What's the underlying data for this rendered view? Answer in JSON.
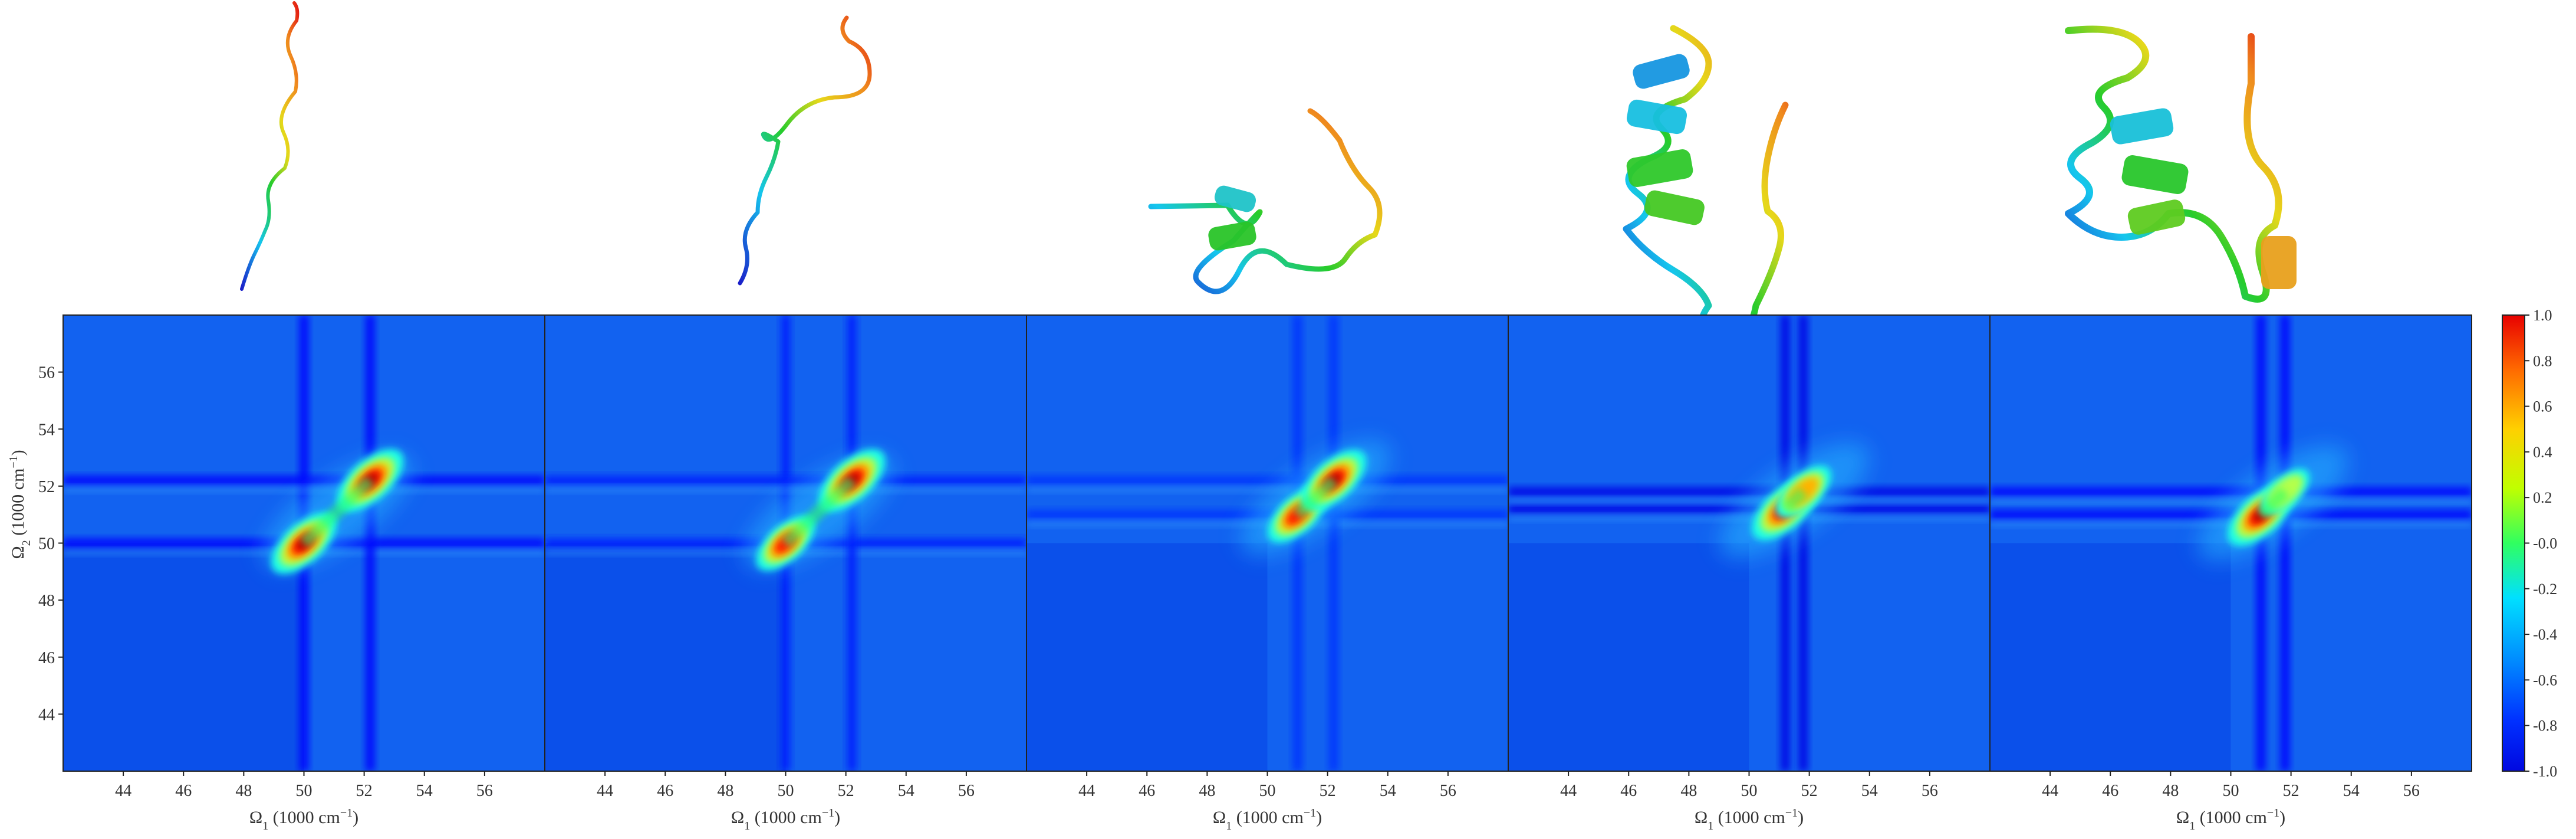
{
  "chart_data": {
    "type": "heatmap",
    "description_of_panels": "",
    "ylabel_main": "Ω",
    "ylabel_sub": "2",
    "ylabel_unit": " (1000 cm",
    "ylabel_sup": "−1",
    "ylabel_close": ")",
    "xlabel_main": "Ω",
    "xlabel_sub": "1",
    "xlabel_unit": " (1000 cm",
    "xlabel_sup": "−1",
    "xlabel_close": ")",
    "xlim": [
      42,
      58
    ],
    "ylim": [
      42,
      58
    ],
    "xticks": [
      "44",
      "46",
      "48",
      "50",
      "52",
      "54",
      "56"
    ],
    "yticks": [
      "44",
      "46",
      "48",
      "50",
      "52",
      "54",
      "56"
    ],
    "colorbar": {
      "colormap": "jet",
      "range": [
        -1.0,
        1.0
      ],
      "ticks": [
        "1.0",
        "0.8",
        "0.6",
        "0.4",
        "0.2",
        "-0.0",
        "-0.2",
        "-0.4",
        "-0.6",
        "-0.8",
        "-1.0"
      ]
    },
    "panels": [
      {
        "peaks": [
          {
            "x": 50.0,
            "y": 50.0,
            "amp": 0.95
          },
          {
            "x": 52.2,
            "y": 52.2,
            "amp": 1.0
          }
        ],
        "lines": [
          50.0,
          52.2
        ],
        "neg": -0.75
      },
      {
        "peaks": [
          {
            "x": 50.0,
            "y": 50.0,
            "amp": 0.7
          },
          {
            "x": 52.2,
            "y": 52.2,
            "amp": 1.0
          }
        ],
        "lines": [
          50.0,
          52.2
        ],
        "neg": -0.7
      },
      {
        "peaks": [
          {
            "x": 51.0,
            "y": 51.0,
            "amp": 0.75
          },
          {
            "x": 52.2,
            "y": 52.2,
            "amp": 0.95
          }
        ],
        "lines": [
          51.0,
          52.2
        ],
        "neg": -0.65
      },
      {
        "peaks": [
          {
            "x": 51.2,
            "y": 51.2,
            "amp": 1.0
          },
          {
            "x": 51.8,
            "y": 51.8,
            "amp": 0.6
          }
        ],
        "lines": [
          51.2,
          51.8
        ],
        "neg": -0.8
      },
      {
        "peaks": [
          {
            "x": 51.0,
            "y": 51.0,
            "amp": 1.0
          },
          {
            "x": 51.8,
            "y": 51.8,
            "amp": 0.35
          }
        ],
        "lines": [
          51.0,
          51.8
        ],
        "neg": -0.75
      }
    ],
    "structures": [
      {
        "kind": "coil"
      },
      {
        "kind": "coil-loop"
      },
      {
        "kind": "single-turn-helix"
      },
      {
        "kind": "helix"
      },
      {
        "kind": "helix-plus-turn"
      }
    ]
  }
}
